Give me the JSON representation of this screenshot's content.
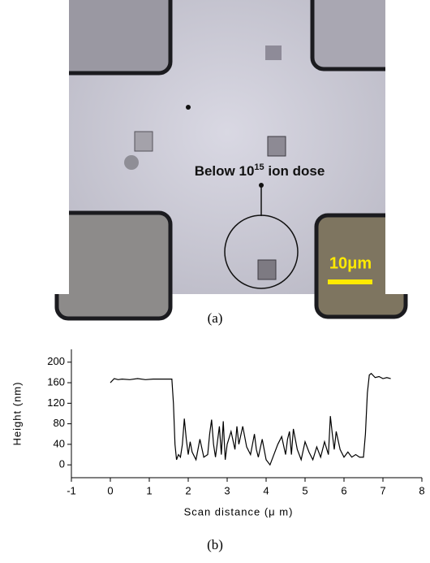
{
  "figure_a": {
    "annotation": {
      "text": "Below 10",
      "superscript": "15",
      "text_after": " ion dose"
    },
    "scale_bar": "10μm",
    "caption": "(a)"
  },
  "chart_data": {
    "type": "line",
    "x_label": "Scan distance (μ m)",
    "y_label": "Height (nm)",
    "xlim": [
      -1,
      8
    ],
    "xticks": [
      -1,
      0,
      1,
      2,
      3,
      4,
      5,
      6,
      7,
      8
    ],
    "ylim": [
      -25,
      225
    ],
    "yticks": [
      0,
      40,
      80,
      120,
      160,
      200
    ],
    "series": [
      {
        "color": "#000000",
        "x": [
          0,
          0.1,
          0.2,
          0.3,
          0.5,
          0.7,
          0.9,
          1.1,
          1.3,
          1.5,
          1.58,
          1.62,
          1.66,
          1.7,
          1.75,
          1.8,
          1.85,
          1.9,
          1.95,
          2.0,
          2.05,
          2.1,
          2.2,
          2.3,
          2.4,
          2.5,
          2.55,
          2.6,
          2.65,
          2.7,
          2.8,
          2.85,
          2.9,
          2.95,
          3.0,
          3.1,
          3.2,
          3.25,
          3.3,
          3.4,
          3.5,
          3.6,
          3.7,
          3.75,
          3.8,
          3.9,
          4.0,
          4.1,
          4.2,
          4.3,
          4.4,
          4.5,
          4.55,
          4.6,
          4.65,
          4.7,
          4.8,
          4.9,
          5.0,
          5.1,
          5.2,
          5.3,
          5.4,
          5.5,
          5.6,
          5.65,
          5.7,
          5.75,
          5.8,
          5.9,
          6.0,
          6.1,
          6.2,
          6.3,
          6.4,
          6.5,
          6.55,
          6.6,
          6.65,
          6.7,
          6.8,
          6.9,
          7.0,
          7.1,
          7.2
        ],
        "values": [
          160,
          168,
          166,
          167,
          166,
          168,
          166,
          167,
          167,
          167,
          167,
          120,
          40,
          10,
          20,
          15,
          40,
          90,
          50,
          20,
          45,
          25,
          10,
          50,
          15,
          20,
          60,
          88,
          40,
          15,
          75,
          20,
          85,
          10,
          40,
          65,
          30,
          75,
          40,
          75,
          35,
          20,
          60,
          30,
          15,
          50,
          10,
          0,
          20,
          40,
          55,
          20,
          50,
          65,
          20,
          70,
          30,
          10,
          45,
          25,
          10,
          35,
          15,
          45,
          20,
          95,
          60,
          30,
          65,
          30,
          15,
          25,
          15,
          20,
          15,
          15,
          60,
          140,
          175,
          178,
          170,
          172,
          168,
          170,
          168
        ]
      }
    ]
  },
  "caption_b": "(b)"
}
